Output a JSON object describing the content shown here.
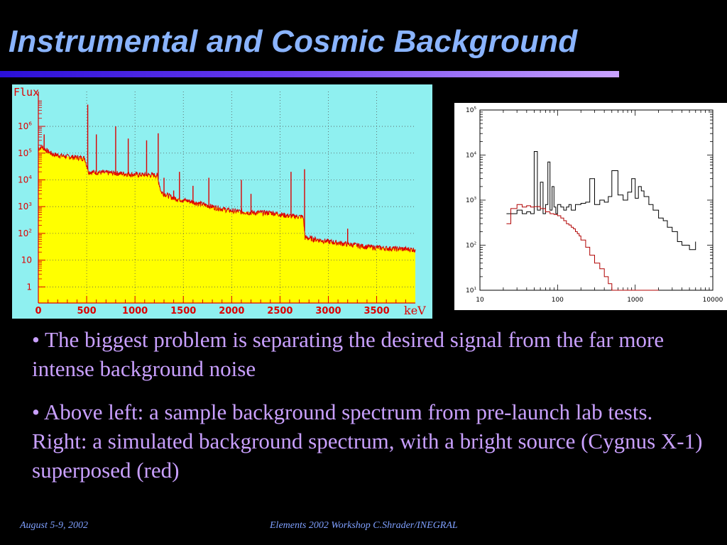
{
  "slide": {
    "title": "Instrumental and Cosmic Background",
    "bullets": [
      "• The biggest problem is separating the desired signal from the far more intense background noise",
      "• Above left: a sample background spectrum from pre-launch lab tests. Right: a simulated background spectrum, with a bright source (Cygnus X-1) superposed (red)"
    ],
    "footer_left": "August 5-9, 2002",
    "footer_center": "Elements 2002 Workshop  C.Shrader/INEGRAL"
  },
  "colors": {
    "background": "#000000",
    "title": "#8ab4ff",
    "bullet_text": "#c9a0ff",
    "footer_text": "#7fa0ff",
    "left_chart_bg": "#8ff0f0",
    "left_chart_fill": "#ffff00",
    "left_chart_line": "#dd0000",
    "right_chart_black": "#000000",
    "right_chart_red": "#b00000"
  },
  "chart_data": [
    {
      "type": "area",
      "ylabel": "Flux",
      "xlabel": "keV",
      "yscale": "log",
      "xlim": [
        0,
        3900
      ],
      "ylim": [
        0.25,
        20000000
      ],
      "x_ticks": [
        0,
        500,
        1000,
        1500,
        2000,
        2500,
        3000,
        3500
      ],
      "x_tick_labels": [
        "0",
        "500",
        "1000",
        "1500",
        "2000",
        "2500",
        "3000",
        "3500"
      ],
      "y_ticks": [
        1,
        10,
        100,
        1000,
        10000,
        100000,
        1000000
      ],
      "y_tick_labels": [
        {
          "base": "1",
          "exp": ""
        },
        {
          "base": "10",
          "exp": ""
        },
        {
          "base": "10",
          "exp": "2"
        },
        {
          "base": "10",
          "exp": "3"
        },
        {
          "base": "10",
          "exp": "4"
        },
        {
          "base": "10",
          "exp": "5"
        },
        {
          "base": "10",
          "exp": "6"
        }
      ],
      "grid": true,
      "continuum": [
        [
          0,
          150000
        ],
        [
          40,
          170000
        ],
        [
          80,
          130000
        ],
        [
          150,
          90000
        ],
        [
          300,
          75000
        ],
        [
          480,
          65000
        ],
        [
          520,
          20000
        ],
        [
          800,
          18000
        ],
        [
          1000,
          16000
        ],
        [
          1230,
          15000
        ],
        [
          1270,
          3500
        ],
        [
          1400,
          2100
        ],
        [
          1600,
          1500
        ],
        [
          1800,
          1000
        ],
        [
          2000,
          700
        ],
        [
          2200,
          600
        ],
        [
          2400,
          600
        ],
        [
          2600,
          450
        ],
        [
          2740,
          420
        ],
        [
          2760,
          70
        ],
        [
          3000,
          50
        ],
        [
          3200,
          40
        ],
        [
          3400,
          32
        ],
        [
          3600,
          28
        ],
        [
          3900,
          25
        ]
      ],
      "lines": [
        [
          60,
          500000
        ],
        [
          511,
          6500000
        ],
        [
          600,
          500000
        ],
        [
          800,
          1000000
        ],
        [
          930,
          350000
        ],
        [
          1120,
          300000
        ],
        [
          1240,
          550000
        ],
        [
          1300,
          12000
        ],
        [
          1400,
          4000
        ],
        [
          1460,
          20000
        ],
        [
          1600,
          6000
        ],
        [
          1764,
          12000
        ],
        [
          2100,
          10000
        ],
        [
          2200,
          3000
        ],
        [
          2614,
          20000
        ],
        [
          2754,
          25000
        ],
        [
          3200,
          150
        ]
      ]
    },
    {
      "type": "line",
      "xscale": "log",
      "yscale": "log",
      "xlim": [
        10,
        10000
      ],
      "ylim": [
        10,
        100000
      ],
      "x_ticks": [
        10,
        100,
        1000,
        10000
      ],
      "x_tick_labels": [
        "10",
        "100",
        "1000",
        "10000"
      ],
      "y_ticks": [
        10,
        100,
        1000,
        10000,
        100000
      ],
      "y_tick_labels": [
        {
          "base": "10",
          "exp": "1"
        },
        {
          "base": "10",
          "exp": "2"
        },
        {
          "base": "10",
          "exp": "3"
        },
        {
          "base": "10",
          "exp": "4"
        },
        {
          "base": "10",
          "exp": "5"
        }
      ],
      "grid": false,
      "series": [
        {
          "color": "black",
          "x": [
            22,
            25,
            30,
            35,
            40,
            45,
            50,
            55,
            60,
            65,
            70,
            75,
            80,
            85,
            90,
            95,
            100,
            110,
            120,
            130,
            140,
            150,
            170,
            200,
            230,
            260,
            300,
            350,
            400,
            450,
            500,
            600,
            700,
            800,
            900,
            1000,
            1100,
            1200,
            1300,
            1500,
            1700,
            2000,
            2300,
            2600,
            3000,
            3500,
            4000,
            5000,
            6000
          ],
          "y": [
            500,
            500,
            600,
            500,
            550,
            500,
            12000,
            600,
            2500,
            500,
            800,
            7000,
            600,
            2000,
            700,
            500,
            800,
            700,
            600,
            700,
            800,
            600,
            800,
            850,
            900,
            3000,
            800,
            1000,
            900,
            1200,
            4500,
            1300,
            1000,
            1500,
            3000,
            1100,
            2000,
            1600,
            1200,
            800,
            600,
            400,
            350,
            250,
            200,
            120,
            100,
            80,
            120
          ]
        },
        {
          "color": "red",
          "x": [
            22,
            25,
            30,
            35,
            40,
            45,
            50,
            60,
            70,
            80,
            90,
            100,
            110,
            120,
            130,
            140,
            150,
            160,
            170,
            180,
            190,
            200,
            230,
            260,
            300,
            350,
            400,
            450,
            500,
            550,
            600,
            700,
            800,
            1000,
            1500,
            2000
          ],
          "y": [
            300,
            650,
            800,
            700,
            750,
            700,
            720,
            650,
            550,
            500,
            480,
            450,
            400,
            350,
            300,
            280,
            250,
            230,
            200,
            180,
            160,
            130,
            90,
            60,
            40,
            30,
            20,
            14,
            10,
            9,
            8,
            8,
            8,
            8,
            8,
            8
          ]
        }
      ]
    }
  ]
}
